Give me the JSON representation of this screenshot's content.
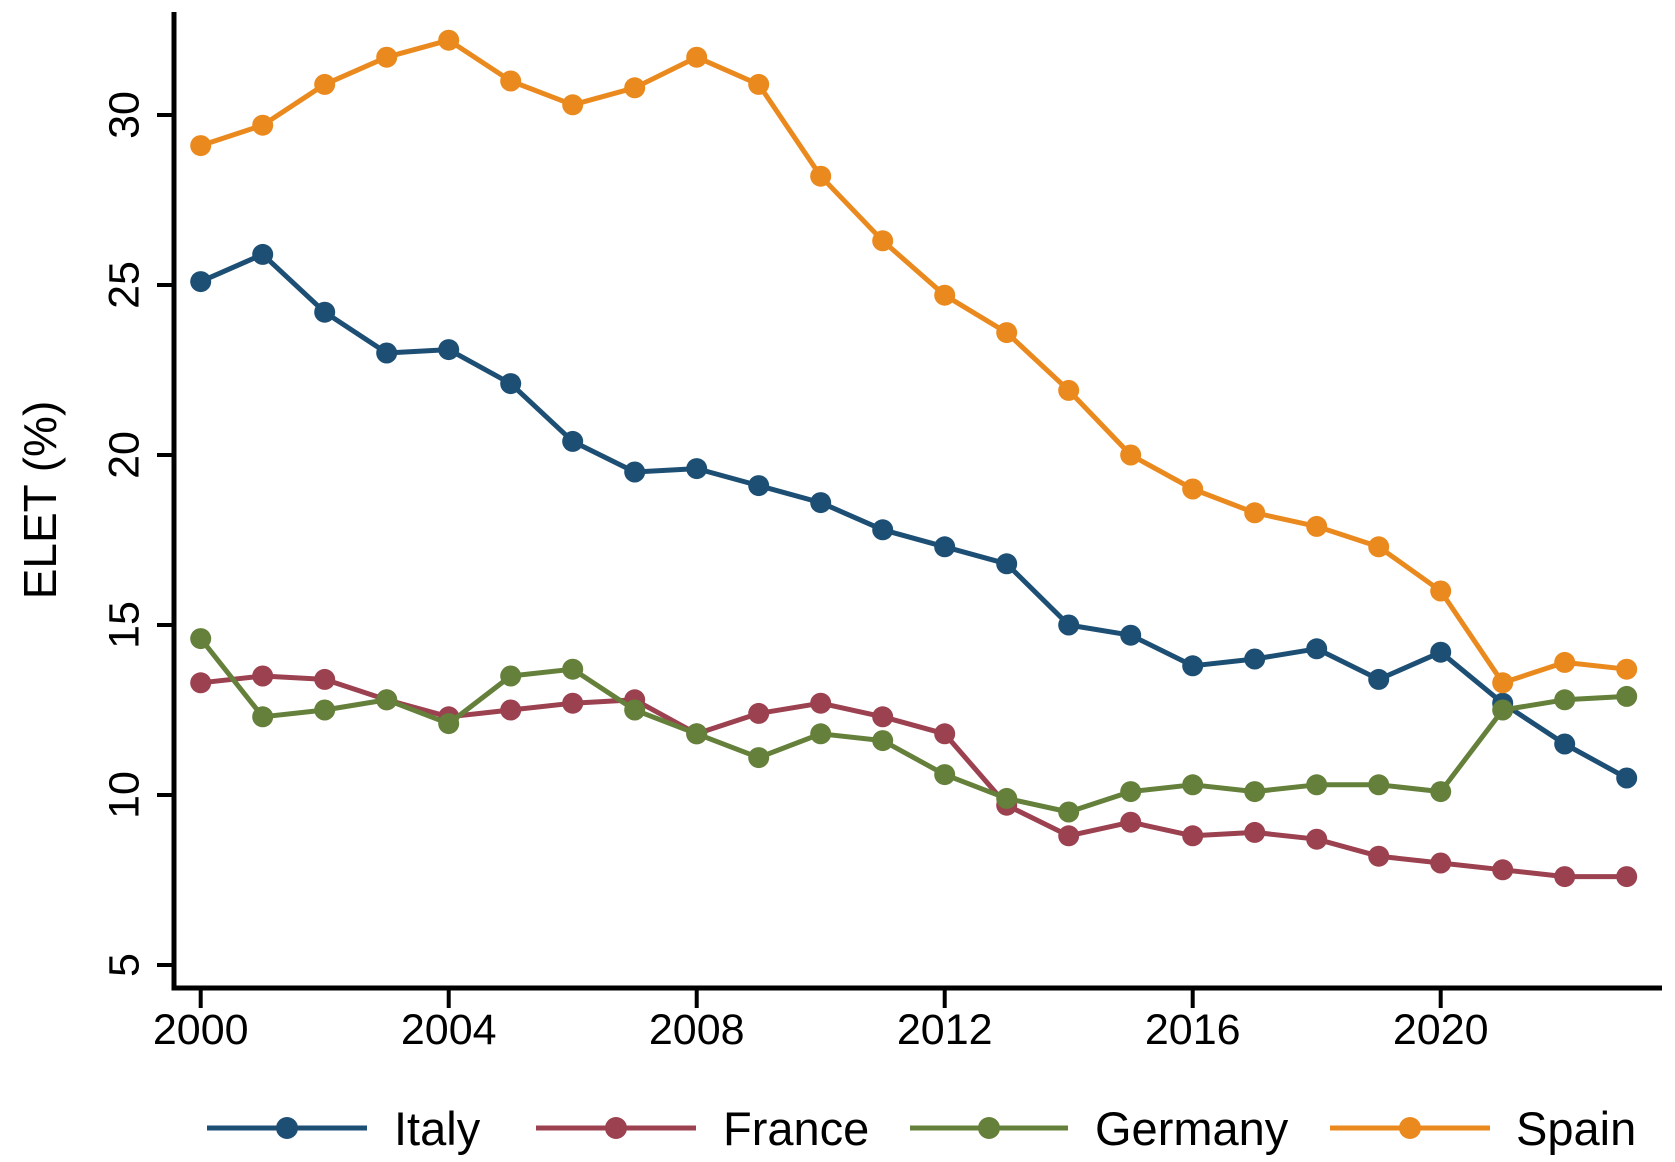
{
  "figure": {
    "background": "#ffffff",
    "axis_color": "#000000",
    "text_color": "#000000"
  },
  "chart_data": {
    "type": "line",
    "title": "",
    "xlabel": "",
    "ylabel": "ELET (%)",
    "x": [
      2000,
      2001,
      2002,
      2003,
      2004,
      2005,
      2006,
      2007,
      2008,
      2009,
      2010,
      2011,
      2012,
      2013,
      2014,
      2015,
      2016,
      2017,
      2018,
      2019,
      2020,
      2021,
      2022,
      2023
    ],
    "x_ticks": [
      2000,
      2004,
      2008,
      2012,
      2016,
      2020
    ],
    "x_tick_labels": [
      "2000",
      "2004",
      "2008",
      "2012",
      "2016",
      "2020"
    ],
    "y_ticks": [
      5,
      10,
      15,
      20,
      25,
      30
    ],
    "y_tick_labels": [
      "5",
      "10",
      "15",
      "20",
      "25",
      "30"
    ],
    "ylim": [
      4.3,
      33.0
    ],
    "xlim": [
      1999.5,
      2023.6
    ],
    "grid": "off",
    "legend_position": "bottom",
    "marker": "filled-circle",
    "series": [
      {
        "name": "Italy",
        "color": "#1d4f75",
        "values": [
          25.1,
          25.9,
          24.2,
          23.0,
          23.1,
          22.1,
          20.4,
          19.5,
          19.6,
          19.1,
          18.6,
          17.8,
          17.3,
          16.8,
          15.0,
          14.7,
          13.8,
          14.0,
          14.3,
          13.4,
          14.2,
          12.7,
          11.5,
          10.5
        ]
      },
      {
        "name": "France",
        "color": "#9c4150",
        "values": [
          13.3,
          13.5,
          13.4,
          12.8,
          12.3,
          12.5,
          12.7,
          12.8,
          11.8,
          12.4,
          12.7,
          12.3,
          11.8,
          9.7,
          8.8,
          9.2,
          8.8,
          8.9,
          8.7,
          8.2,
          8.0,
          7.8,
          7.6,
          7.6
        ]
      },
      {
        "name": "Germany",
        "color": "#64803a",
        "values": [
          14.6,
          12.3,
          12.5,
          12.8,
          12.1,
          13.5,
          13.7,
          12.5,
          11.8,
          11.1,
          11.8,
          11.6,
          10.6,
          9.9,
          9.5,
          10.1,
          10.3,
          10.1,
          10.3,
          10.3,
          10.1,
          12.5,
          12.8,
          12.9
        ]
      },
      {
        "name": "Spain",
        "color": "#ea8a1e",
        "values": [
          29.1,
          29.7,
          30.9,
          31.7,
          32.2,
          31.0,
          30.3,
          30.8,
          31.7,
          30.9,
          28.2,
          26.3,
          24.7,
          23.6,
          21.9,
          20.0,
          19.0,
          18.3,
          17.9,
          17.3,
          16.0,
          13.3,
          13.9,
          13.7
        ]
      }
    ],
    "legend_entries": [
      "Italy",
      "France",
      "Germany",
      "Spain"
    ]
  }
}
